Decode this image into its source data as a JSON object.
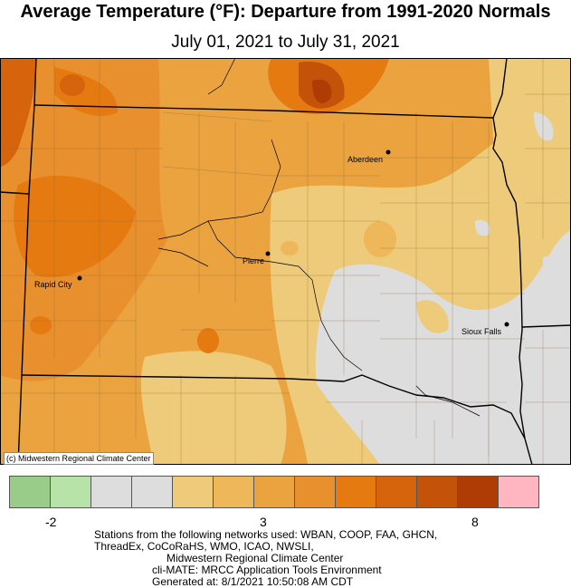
{
  "title": "Average Temperature (°F): Departure from 1991-2020 Normals",
  "subtitle": "July 01, 2021 to July 31, 2021",
  "credit": "(c) Midwestern Regional Climate Center",
  "cities": [
    {
      "name": "Aberdeen"
    },
    {
      "name": "Pierre"
    },
    {
      "name": "Rapid City"
    },
    {
      "name": "Sioux Falls"
    }
  ],
  "legend": {
    "colors": [
      "#99cc88",
      "#b8e3a8",
      "#dddddd",
      "#dddddd",
      "#edcb7a",
      "#edb75a",
      "#eba340",
      "#e8902d",
      "#e47a10",
      "#d6640c",
      "#c55209",
      "#ae3c04",
      "#ffb6c1"
    ],
    "tick_labels": [
      "-2",
      "3",
      "8"
    ]
  },
  "footer": {
    "line1": "Stations from the following networks used: WBAN, COOP, FAA, GHCN,",
    "line2": "ThreadEx, CoCoRaHS, WMO, ICAO, NWSLI,",
    "line3": "Midwestern Regional Climate Center",
    "line4": "cli-MATE: MRCC Application Tools Environment",
    "line5": "Generated at: 8/1/2021 10:50:08 AM CDT"
  }
}
